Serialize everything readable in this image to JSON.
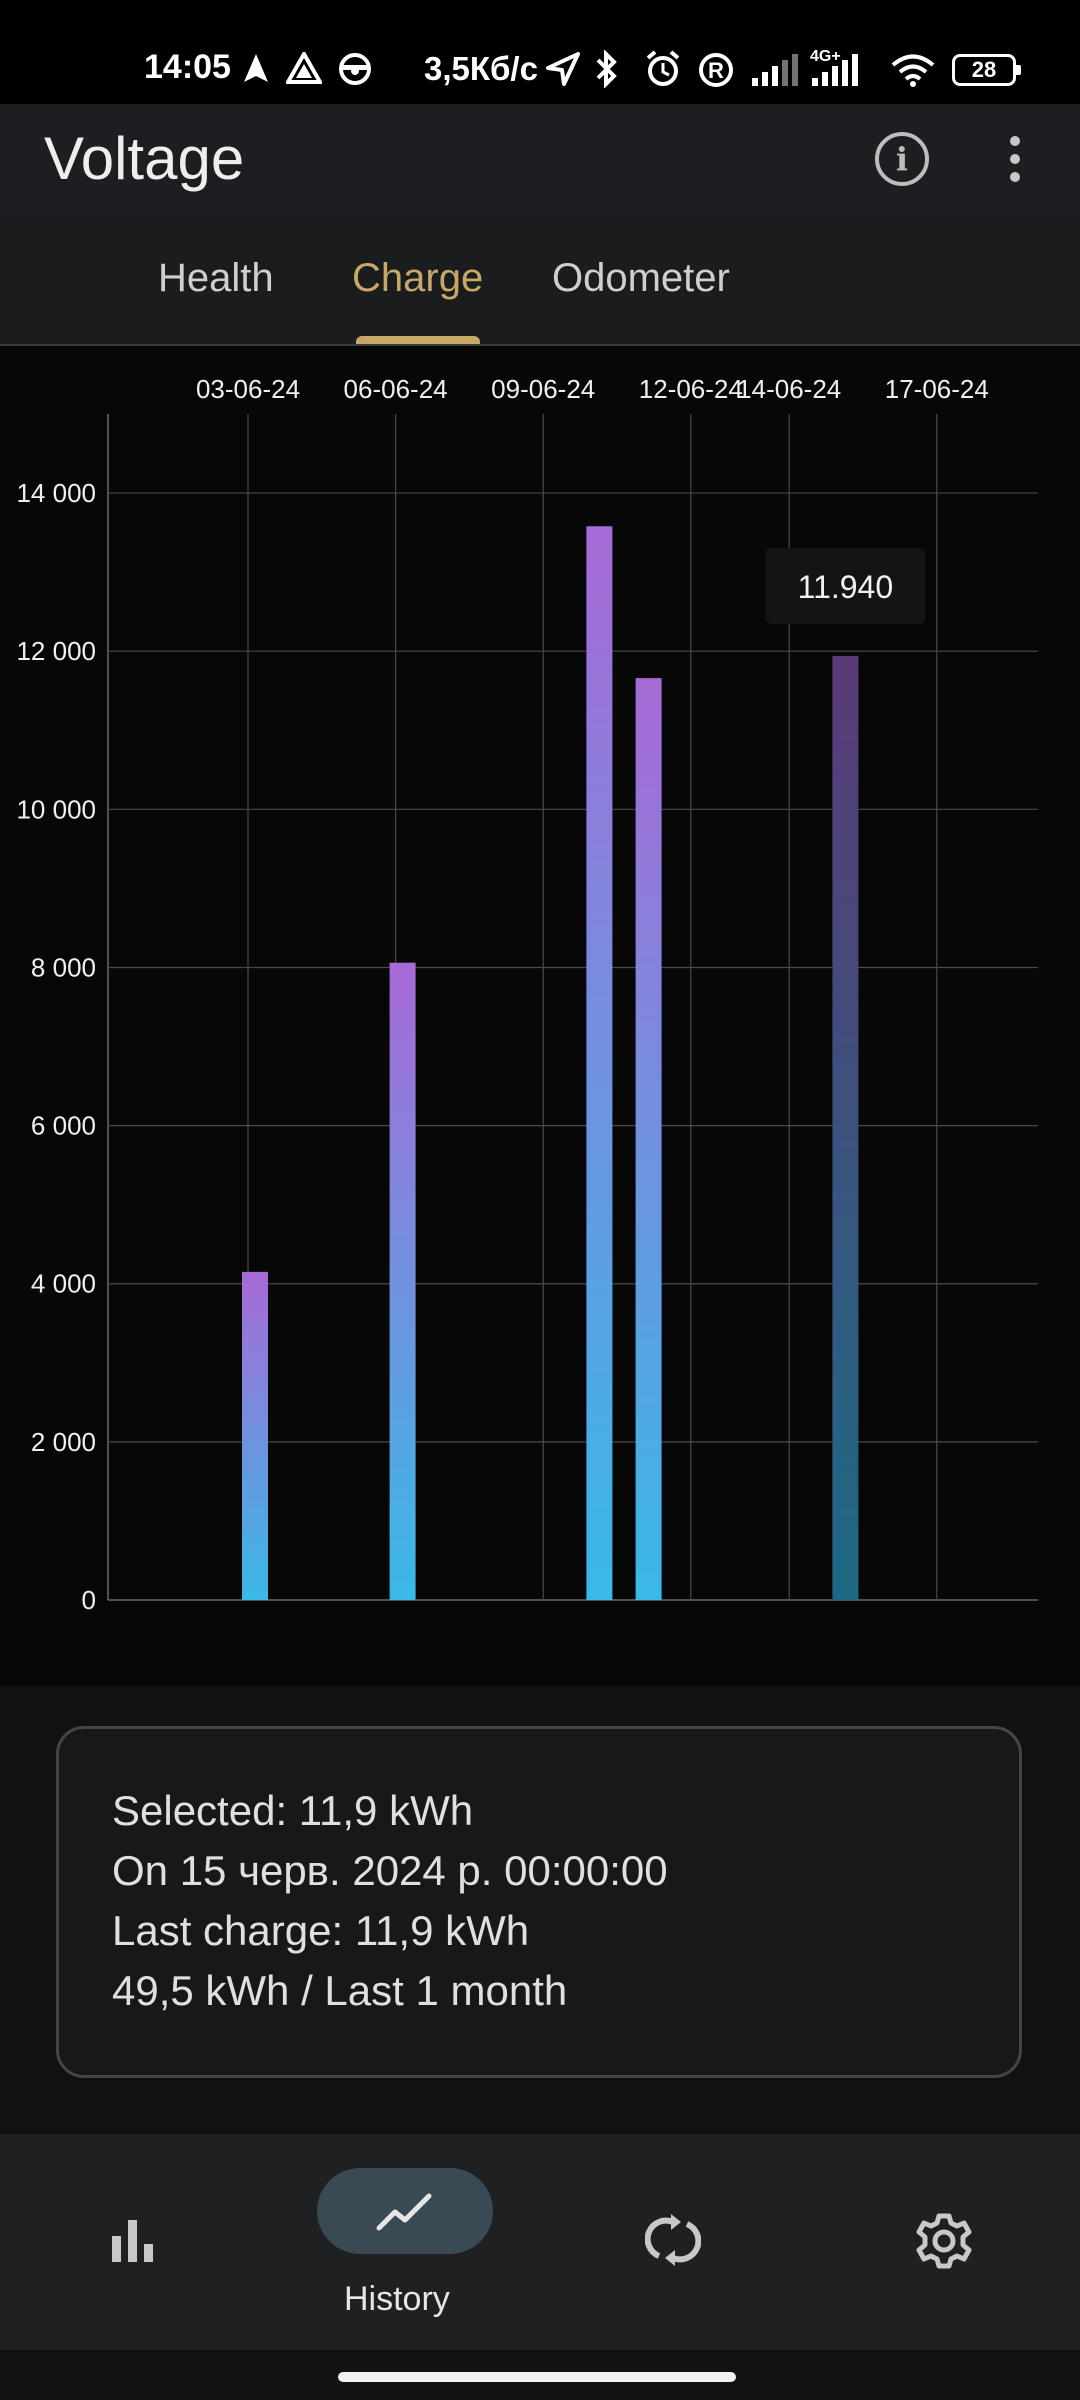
{
  "status_bar": {
    "time": "14:05",
    "speed": "3,5Кб/с",
    "network": "4G+",
    "battery": "28",
    "icons": [
      "navigation-arrow-icon",
      "maps-icon",
      "steering-icon",
      "location-icon",
      "bluetooth-icon",
      "alarm-icon",
      "roaming-icon",
      "signal-icon",
      "wifi-icon"
    ]
  },
  "app_bar": {
    "title": "Voltage",
    "info_icon": "info-icon",
    "more_icon": "more-vert-icon"
  },
  "tabs": [
    {
      "label": "Health",
      "active": false
    },
    {
      "label": "Charge",
      "active": true
    },
    {
      "label": "Odometer",
      "active": false
    }
  ],
  "colors": {
    "accent": "#c7a867",
    "bar_top": "#a86ad6",
    "bar_bottom": "#39b9e6",
    "background": "#111213"
  },
  "chart_data": {
    "type": "bar",
    "x_tick_labels": [
      "03-06-24",
      "06-06-24",
      "09-06-24",
      "12-06-24",
      "14-06-24",
      "17-06-24"
    ],
    "y_tick_labels": [
      "0",
      "2 000",
      "4 000",
      "6 000",
      "8 000",
      "10 000",
      "12 000",
      "14 000"
    ],
    "ylim": [
      0,
      15000
    ],
    "grid": true,
    "bars": [
      {
        "date": "03-06-24",
        "value": 4150
      },
      {
        "date": "06-06-24",
        "value": 8060
      },
      {
        "date": "10-06-24",
        "value": 13580
      },
      {
        "date": "11-06-24",
        "value": 11660
      },
      {
        "date": "15-06-24",
        "value": 11940,
        "selected": true
      }
    ],
    "tooltip": "11.940"
  },
  "summary": {
    "selected": "Selected: 11,9 kWh",
    "on_date": "On 15 черв. 2024 р. 00:00:00",
    "last_charge": "Last charge: 11,9 kWh",
    "total": "49,5 kWh / Last 1 month"
  },
  "bottom_nav": [
    {
      "icon": "bar-chart-icon",
      "label": ""
    },
    {
      "icon": "trending-line-icon",
      "label": "History",
      "active": true
    },
    {
      "icon": "sync-icon",
      "label": ""
    },
    {
      "icon": "settings-gear-icon",
      "label": ""
    }
  ]
}
